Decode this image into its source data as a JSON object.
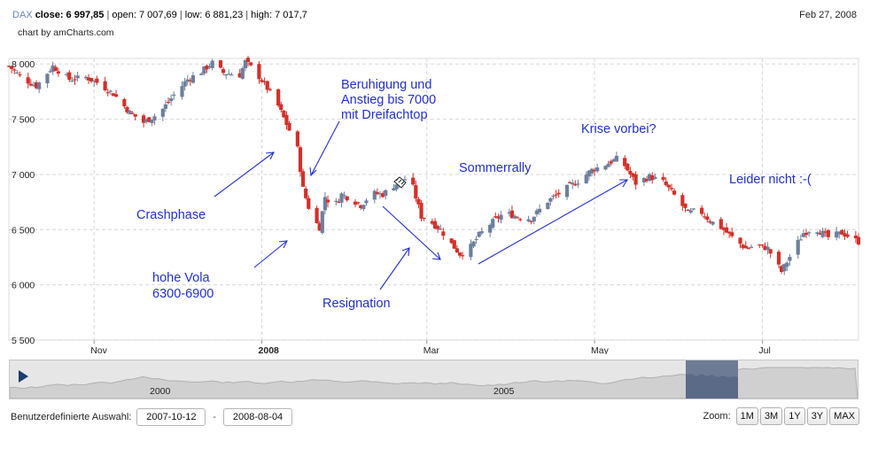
{
  "header": {
    "symbol": "DAX",
    "close_label": "close:",
    "close_value": "6 997,85",
    "open_text": "open: 7 007,69",
    "low_text": "low: 6 881,23",
    "high_text": "high: 7 017,7",
    "date": "Feb 27, 2008",
    "credit": "chart by amCharts.com"
  },
  "chart_data": {
    "type": "candlestick",
    "series_name": "DAX",
    "ylim": [
      5500,
      8050
    ],
    "y_ticks": [
      "8 000",
      "7 500",
      "7 000",
      "6 500",
      "6 000",
      "5 500"
    ],
    "y_tick_values": [
      8000,
      7500,
      7000,
      6500,
      6000,
      5500
    ],
    "x_ticks": [
      "Nov",
      "2008",
      "Mar",
      "May",
      "Jul"
    ],
    "x_tick_days": [
      31,
      92,
      152,
      213,
      274
    ],
    "x_range_days": [
      0,
      309
    ],
    "x_start_date": "2007-10-01",
    "x_end_date": "2008-08-04",
    "up_color": "#6d7f9c",
    "down_color": "#d2302a",
    "grid": true,
    "anchors": [
      [
        0,
        7980
      ],
      [
        5,
        7870
      ],
      [
        10,
        7800
      ],
      [
        16,
        7980
      ],
      [
        22,
        7860
      ],
      [
        28,
        7880
      ],
      [
        33,
        7820
      ],
      [
        38,
        7730
      ],
      [
        44,
        7560
      ],
      [
        49,
        7470
      ],
      [
        55,
        7560
      ],
      [
        60,
        7720
      ],
      [
        65,
        7860
      ],
      [
        70,
        7930
      ],
      [
        74,
        8010
      ],
      [
        78,
        7920
      ],
      [
        84,
        7900
      ],
      [
        86,
        8020
      ],
      [
        90,
        7920
      ],
      [
        94,
        7780
      ],
      [
        98,
        7620
      ],
      [
        102,
        7400
      ],
      [
        105,
        7230
      ],
      [
        107,
        6870
      ],
      [
        110,
        6620
      ],
      [
        113,
        6520
      ],
      [
        115,
        6800
      ],
      [
        118,
        6700
      ],
      [
        121,
        6820
      ],
      [
        125,
        6770
      ],
      [
        128,
        6720
      ],
      [
        132,
        6830
      ],
      [
        136,
        6820
      ],
      [
        140,
        6900
      ],
      [
        144,
        6960
      ],
      [
        147,
        6880
      ],
      [
        150,
        6620
      ],
      [
        153,
        6580
      ],
      [
        157,
        6500
      ],
      [
        160,
        6400
      ],
      [
        164,
        6280
      ],
      [
        167,
        6310
      ],
      [
        171,
        6450
      ],
      [
        175,
        6550
      ],
      [
        180,
        6650
      ],
      [
        185,
        6620
      ],
      [
        190,
        6600
      ],
      [
        196,
        6760
      ],
      [
        202,
        6860
      ],
      [
        207,
        6940
      ],
      [
        212,
        7040
      ],
      [
        217,
        7090
      ],
      [
        221,
        7140
      ],
      [
        224,
        7080
      ],
      [
        228,
        6920
      ],
      [
        233,
        6980
      ],
      [
        238,
        6930
      ],
      [
        243,
        6780
      ],
      [
        247,
        6650
      ],
      [
        251,
        6680
      ],
      [
        255,
        6580
      ],
      [
        259,
        6520
      ],
      [
        263,
        6430
      ],
      [
        268,
        6330
      ],
      [
        272,
        6360
      ],
      [
        276,
        6330
      ],
      [
        281,
        6120
      ],
      [
        285,
        6300
      ],
      [
        289,
        6470
      ],
      [
        293,
        6520
      ],
      [
        298,
        6430
      ],
      [
        303,
        6470
      ],
      [
        309,
        6390
      ]
    ],
    "annotations": [
      {
        "lines": [
          "Beruhigung und",
          "Anstieg bis 7000",
          "mit Dreifachtop"
        ]
      },
      {
        "lines": [
          "Krise vorbei?"
        ]
      },
      {
        "lines": [
          "Sommerrally"
        ]
      },
      {
        "lines": [
          "Leider nicht :-("
        ]
      },
      {
        "lines": [
          "Crashphase"
        ]
      },
      {
        "lines": [
          "hohe Vola",
          "6300-6900"
        ]
      },
      {
        "lines": [
          "Resignation"
        ]
      }
    ]
  },
  "scrollbar": {
    "labels": [
      "2000",
      "2005"
    ]
  },
  "range_selector": {
    "label": "Benutzerdefinierte Auswahl:",
    "from": "2007-10-12",
    "separator": "-",
    "to": "2008-08-04"
  },
  "zoom": {
    "label": "Zoom:",
    "buttons": [
      "1M",
      "3M",
      "1Y",
      "3Y",
      "MAX"
    ]
  }
}
